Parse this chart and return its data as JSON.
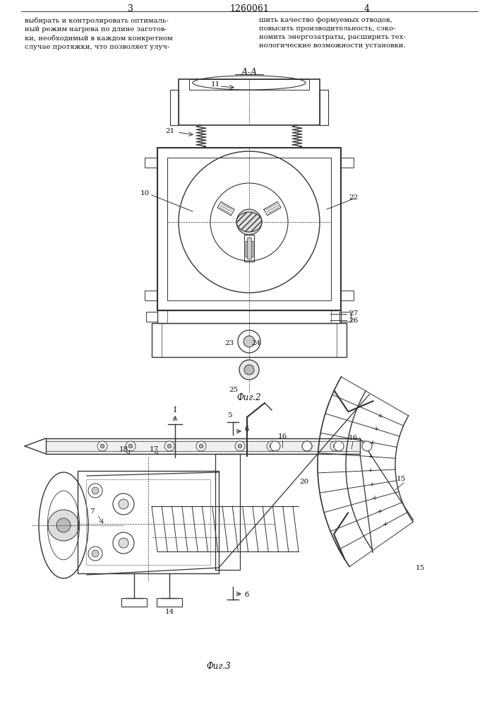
{
  "page_width": 7.07,
  "page_height": 10.0,
  "bg_color": "#ffffff",
  "header_left_text": "выбирать и контролировать оптималь-\nный режим нагрева по длине заготов-\nки, необходимый в каждом конкретном\nслучае протяжки, что позволяет улуч-",
  "header_right_text": "шить качество формуемых отводов,\nповысить производительность, сэко-\nномить энергозатраты, расширить тех-\nнологические возможности установки.",
  "page_num_left": "3",
  "page_num_right": "4",
  "patent_num": "1260061",
  "fig2_label": "Фиг.2",
  "fig3_label": "Фиг.3",
  "section_label": "А-А",
  "line_color": "#333333",
  "text_color": "#111111"
}
